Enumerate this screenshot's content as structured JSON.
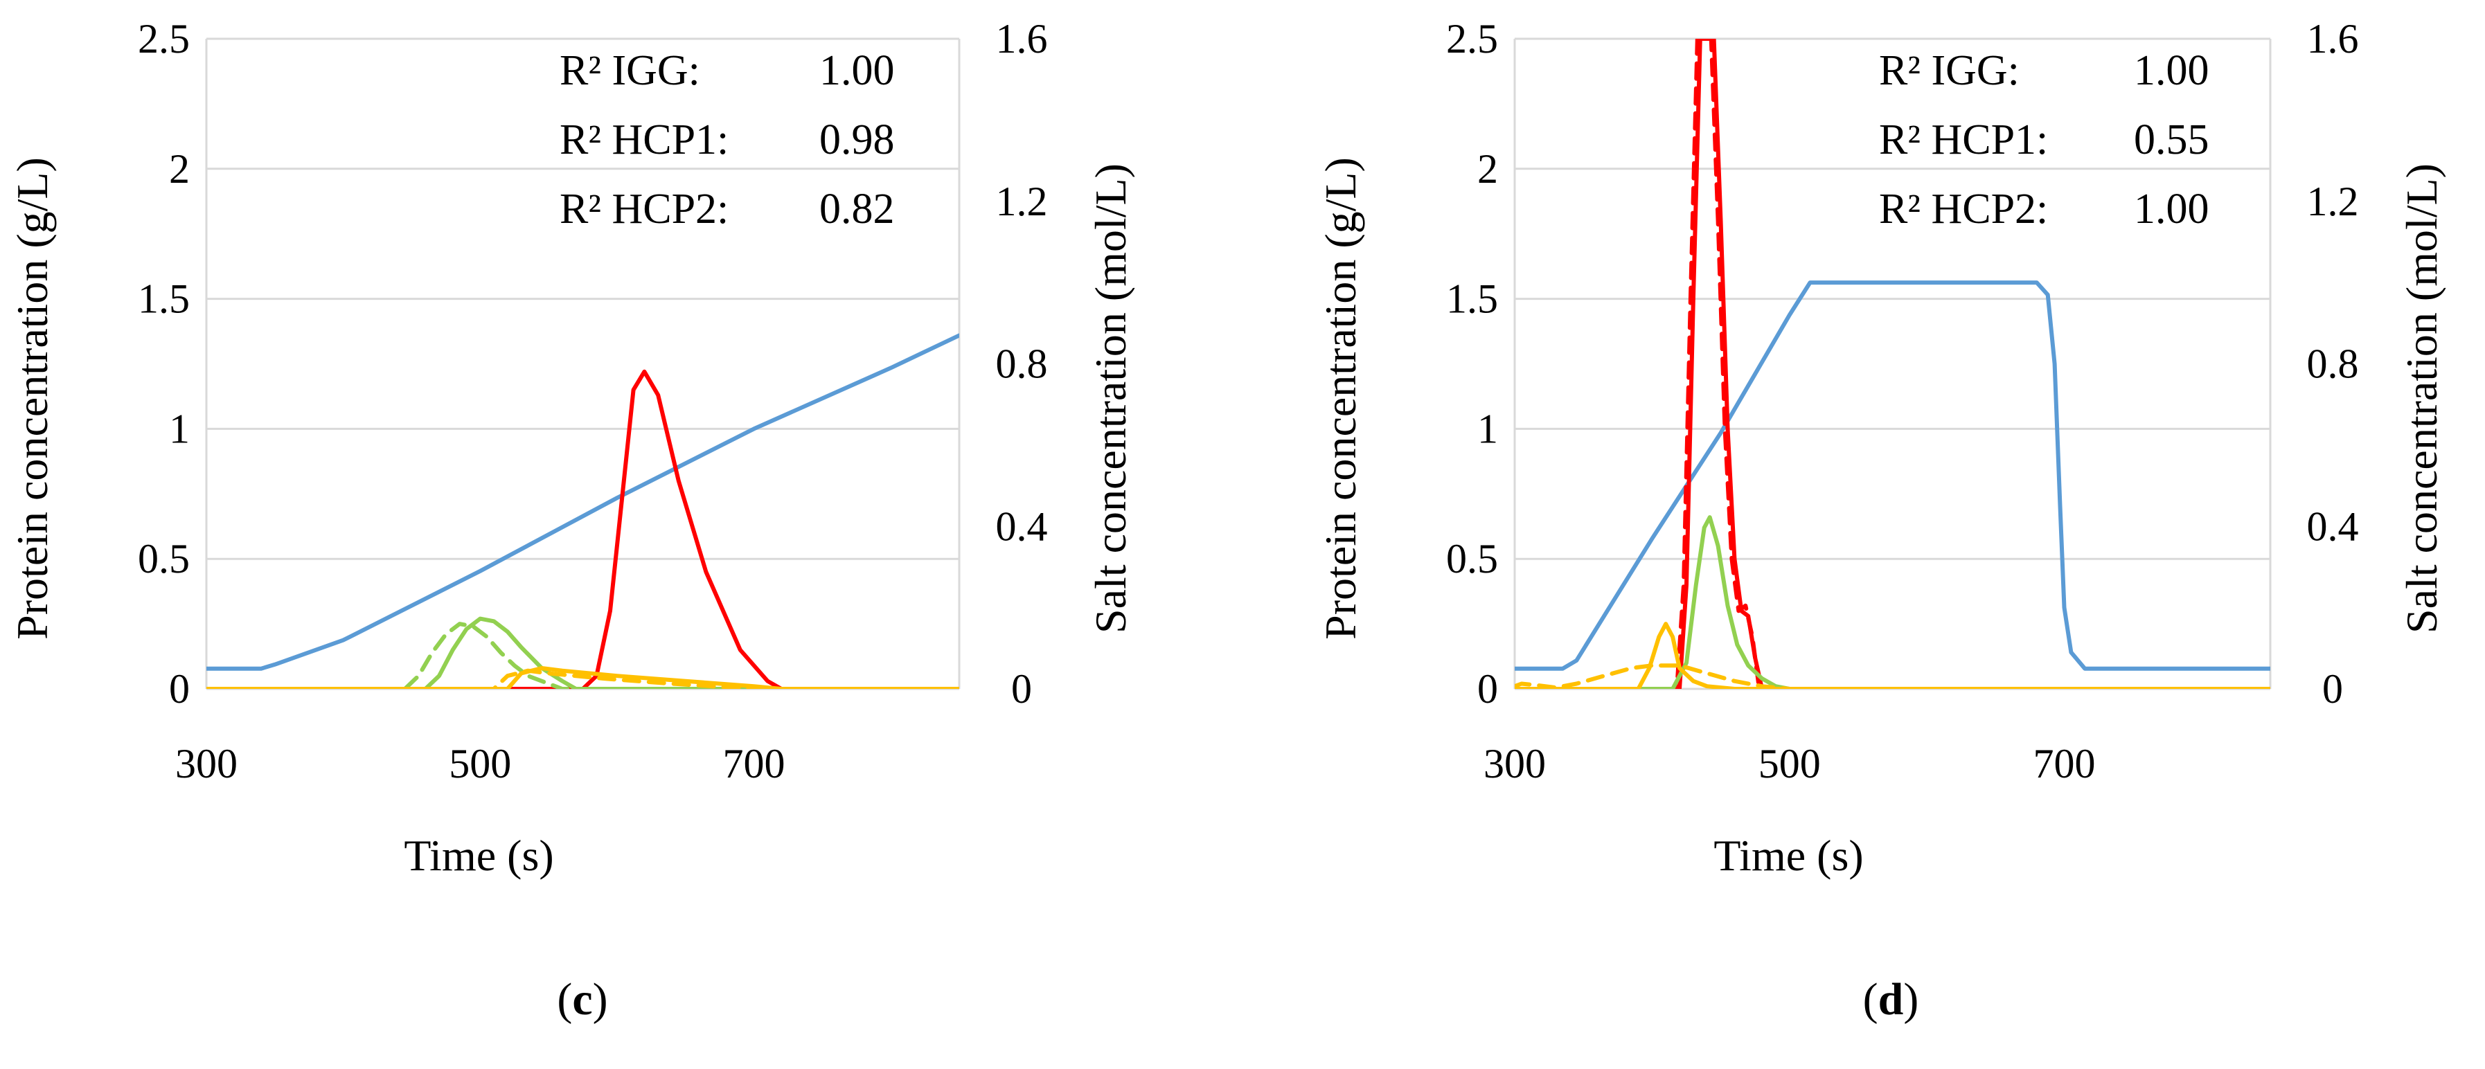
{
  "chart_data": [
    {
      "type": "line",
      "panel_label": "c",
      "xlabel": "Time (s)",
      "ylabel": "Protein concentration (g/L)",
      "y2label": "Salt concentration (mol/L)",
      "xlim": [
        300,
        850
      ],
      "ylim": [
        0,
        2.5
      ],
      "y2lim": [
        0,
        1.6
      ],
      "xticks": [
        "300",
        "500",
        "700"
      ],
      "xtick_values": [
        300,
        500,
        700
      ],
      "yticks": [
        "0",
        "0.5",
        "1",
        "1.5",
        "2",
        "2.5"
      ],
      "ytick_values": [
        0,
        0.5,
        1,
        1.5,
        2,
        2.5
      ],
      "y2ticks": [
        "0",
        "0.4",
        "0.8",
        "1.2",
        "1.6"
      ],
      "y2tick_values": [
        0,
        0.4,
        0.8,
        1.2,
        1.6
      ],
      "grid": true,
      "annotations": [
        {
          "label": "R² IGG:",
          "value": "1.00"
        },
        {
          "label": "R² HCP1:",
          "value": "0.98"
        },
        {
          "label": "R² HCP2:",
          "value": "0.82"
        }
      ],
      "series": [
        {
          "color": "#5b9bd5",
          "dash": "solid",
          "axis": "y2",
          "x": [
            300,
            340,
            350,
            400,
            500,
            600,
            700,
            800,
            850
          ],
          "y": [
            0.05,
            0.05,
            0.06,
            0.12,
            0.29,
            0.47,
            0.64,
            0.79,
            0.87
          ]
        },
        {
          "color": "#ff0000",
          "dash": "solid",
          "axis": "y",
          "x": [
            300,
            575,
            585,
            595,
            605,
            612,
            620,
            630,
            645,
            665,
            690,
            710,
            720,
            850
          ],
          "y": [
            0,
            0,
            0.05,
            0.3,
            0.8,
            1.15,
            1.22,
            1.13,
            0.8,
            0.45,
            0.15,
            0.03,
            0,
            0
          ]
        },
        {
          "color": "#92d050",
          "dash": "solid",
          "axis": "y",
          "x": [
            300,
            460,
            470,
            480,
            490,
            500,
            510,
            520,
            530,
            545,
            560,
            570,
            850
          ],
          "y": [
            0,
            0,
            0.05,
            0.15,
            0.23,
            0.27,
            0.26,
            0.22,
            0.16,
            0.08,
            0.03,
            0,
            0
          ]
        },
        {
          "color": "#92d050",
          "dash": "dash",
          "axis": "y",
          "x": [
            300,
            445,
            455,
            465,
            475,
            485,
            495,
            505,
            515,
            525,
            535,
            550,
            560,
            850
          ],
          "y": [
            0,
            0,
            0.05,
            0.14,
            0.21,
            0.25,
            0.24,
            0.2,
            0.14,
            0.09,
            0.05,
            0.02,
            0,
            0
          ]
        },
        {
          "color": "#ffc000",
          "dash": "solid",
          "axis": "y",
          "x": [
            300,
            520,
            530,
            545,
            560,
            600,
            650,
            700,
            720,
            850
          ],
          "y": [
            0,
            0,
            0.06,
            0.08,
            0.07,
            0.05,
            0.03,
            0.01,
            0,
            0
          ]
        },
        {
          "color": "#ffc000",
          "dash": "dash",
          "axis": "y",
          "x": [
            300,
            510,
            520,
            535,
            550,
            590,
            640,
            700,
            850
          ],
          "y": [
            0,
            0,
            0.05,
            0.07,
            0.06,
            0.04,
            0.02,
            0,
            0
          ]
        }
      ]
    },
    {
      "type": "line",
      "panel_label": "d",
      "xlabel": "Time (s)",
      "ylabel": "Protein concentration (g/L)",
      "y2label": "Salt concentration (mol/L)",
      "xlim": [
        300,
        850
      ],
      "ylim": [
        0,
        2.5
      ],
      "y2lim": [
        0,
        1.6
      ],
      "xticks": [
        "300",
        "500",
        "700"
      ],
      "xtick_values": [
        300,
        500,
        700
      ],
      "yticks": [
        "0",
        "0.5",
        "1",
        "1.5",
        "2",
        "2.5"
      ],
      "ytick_values": [
        0,
        0.5,
        1,
        1.5,
        2,
        2.5
      ],
      "y2ticks": [
        "0",
        "0.4",
        "0.8",
        "1.2",
        "1.6"
      ],
      "y2tick_values": [
        0,
        0.4,
        0.8,
        1.2,
        1.6
      ],
      "grid": true,
      "annotations": [
        {
          "label": "R² IGG:",
          "value": "1.00"
        },
        {
          "label": "R² HCP1:",
          "value": "0.55"
        },
        {
          "label": "R² HCP2:",
          "value": "1.00"
        }
      ],
      "series": [
        {
          "color": "#5b9bd5",
          "dash": "solid",
          "axis": "y2",
          "x": [
            300,
            335,
            345,
            400,
            450,
            500,
            515,
            680,
            688,
            693,
            697,
            700,
            705,
            715,
            850
          ],
          "y": [
            0.05,
            0.05,
            0.07,
            0.37,
            0.63,
            0.92,
            1.0,
            1.0,
            0.97,
            0.8,
            0.45,
            0.2,
            0.09,
            0.05,
            0.05
          ]
        },
        {
          "color": "#ff0000",
          "dash": "solid",
          "axis": "y",
          "x": [
            300,
            420,
            425,
            430,
            435,
            440,
            445,
            450,
            455,
            460,
            465,
            470,
            475,
            480,
            850
          ],
          "y": [
            0,
            0,
            0.4,
            1.5,
            2.5,
            2.5,
            2.5,
            1.8,
            1.0,
            0.5,
            0.3,
            0.28,
            0.12,
            0,
            0
          ]
        },
        {
          "color": "#ff0000",
          "dash": "dash",
          "axis": "y",
          "x": [
            300,
            418,
            423,
            428,
            433,
            438,
            443,
            448,
            453,
            458,
            463,
            468,
            473,
            478,
            850
          ],
          "y": [
            0,
            0,
            0.4,
            1.5,
            2.5,
            2.5,
            2.5,
            1.8,
            1.0,
            0.5,
            0.3,
            0.32,
            0.2,
            0,
            0
          ]
        },
        {
          "color": "#92d050",
          "dash": "solid",
          "axis": "y",
          "x": [
            300,
            415,
            425,
            432,
            438,
            442,
            448,
            455,
            462,
            470,
            480,
            490,
            500,
            850
          ],
          "y": [
            0,
            0,
            0.1,
            0.4,
            0.62,
            0.66,
            0.55,
            0.32,
            0.17,
            0.09,
            0.04,
            0.01,
            0,
            0
          ]
        },
        {
          "color": "#ffc000",
          "dash": "solid",
          "axis": "y",
          "x": [
            300,
            390,
            398,
            405,
            410,
            415,
            420,
            430,
            440,
            460,
            850
          ],
          "y": [
            0,
            0,
            0.08,
            0.2,
            0.25,
            0.2,
            0.08,
            0.03,
            0.01,
            0,
            0
          ]
        },
        {
          "color": "#ffc000",
          "dash": "dash",
          "axis": "y",
          "x": [
            300,
            305,
            315,
            330,
            345,
            365,
            385,
            400,
            420,
            440,
            460,
            480,
            500,
            510,
            850
          ],
          "y": [
            0.01,
            0.02,
            0.015,
            0.005,
            0.02,
            0.05,
            0.08,
            0.09,
            0.09,
            0.06,
            0.03,
            0.01,
            0,
            0,
            0
          ]
        }
      ]
    }
  ]
}
